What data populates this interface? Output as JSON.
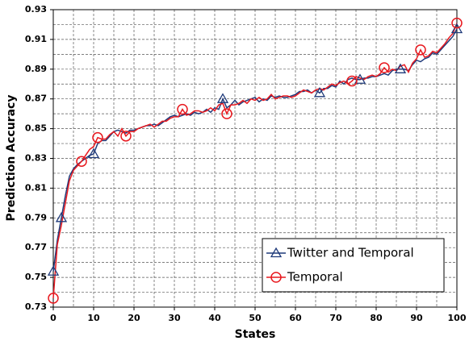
{
  "chart_data": {
    "type": "line",
    "x_label": "States",
    "y_label": "Prediction Accuracy",
    "x": [
      0,
      1,
      2,
      3,
      4,
      5,
      6,
      7,
      8,
      9,
      10,
      11,
      12,
      13,
      14,
      15,
      16,
      17,
      18,
      19,
      20,
      21,
      22,
      23,
      24,
      25,
      26,
      27,
      28,
      29,
      30,
      31,
      32,
      33,
      34,
      35,
      36,
      37,
      38,
      39,
      40,
      41,
      42,
      43,
      44,
      45,
      46,
      47,
      48,
      49,
      50,
      51,
      52,
      53,
      54,
      55,
      56,
      57,
      58,
      59,
      60,
      61,
      62,
      63,
      64,
      65,
      66,
      67,
      68,
      69,
      70,
      71,
      72,
      73,
      74,
      75,
      76,
      77,
      78,
      79,
      80,
      81,
      82,
      83,
      84,
      85,
      86,
      87,
      88,
      89,
      90,
      91,
      92,
      93,
      94,
      95,
      96,
      97,
      98,
      99,
      100
    ],
    "series": [
      {
        "name": "Twitter and Temporal",
        "color": "#1f3a7a",
        "marker": "triangle",
        "markers": [
          0,
          2,
          10,
          42,
          66,
          76,
          86,
          100
        ],
        "values": [
          0.754,
          0.775,
          0.79,
          0.805,
          0.818,
          0.823,
          0.826,
          0.828,
          0.83,
          0.832,
          0.833,
          0.84,
          0.842,
          0.842,
          0.845,
          0.848,
          0.849,
          0.848,
          0.847,
          0.849,
          0.849,
          0.85,
          0.851,
          0.852,
          0.852,
          0.853,
          0.852,
          0.854,
          0.856,
          0.858,
          0.859,
          0.858,
          0.859,
          0.86,
          0.859,
          0.861,
          0.86,
          0.861,
          0.863,
          0.861,
          0.864,
          0.863,
          0.87,
          0.864,
          0.866,
          0.869,
          0.866,
          0.868,
          0.869,
          0.87,
          0.871,
          0.868,
          0.87,
          0.869,
          0.872,
          0.871,
          0.872,
          0.871,
          0.871,
          0.872,
          0.873,
          0.875,
          0.875,
          0.876,
          0.874,
          0.876,
          0.874,
          0.877,
          0.877,
          0.879,
          0.878,
          0.882,
          0.88,
          0.883,
          0.884,
          0.883,
          0.883,
          0.884,
          0.884,
          0.885,
          0.885,
          0.886,
          0.887,
          0.886,
          0.889,
          0.89,
          0.89,
          0.89,
          0.889,
          0.893,
          0.896,
          0.895,
          0.897,
          0.898,
          0.901,
          0.9,
          0.903,
          0.906,
          0.909,
          0.912,
          0.917
        ]
      },
      {
        "name": "Temporal",
        "color": "#e8191f",
        "marker": "circle",
        "markers": [
          0,
          7,
          11,
          18,
          32,
          43,
          74,
          82,
          91,
          100
        ],
        "values": [
          0.736,
          0.772,
          0.785,
          0.8,
          0.815,
          0.822,
          0.825,
          0.828,
          0.832,
          0.836,
          0.838,
          0.844,
          0.843,
          0.843,
          0.846,
          0.848,
          0.845,
          0.85,
          0.845,
          0.848,
          0.848,
          0.85,
          0.851,
          0.852,
          0.853,
          0.851,
          0.853,
          0.855,
          0.855,
          0.857,
          0.858,
          0.858,
          0.863,
          0.859,
          0.86,
          0.862,
          0.862,
          0.861,
          0.862,
          0.864,
          0.862,
          0.866,
          0.867,
          0.86,
          0.866,
          0.866,
          0.867,
          0.869,
          0.867,
          0.87,
          0.869,
          0.871,
          0.869,
          0.87,
          0.873,
          0.87,
          0.871,
          0.872,
          0.872,
          0.871,
          0.872,
          0.874,
          0.876,
          0.875,
          0.874,
          0.876,
          0.877,
          0.876,
          0.878,
          0.88,
          0.879,
          0.881,
          0.882,
          0.88,
          0.882,
          0.885,
          0.884,
          0.883,
          0.885,
          0.886,
          0.885,
          0.887,
          0.891,
          0.888,
          0.89,
          0.889,
          0.892,
          0.893,
          0.888,
          0.894,
          0.897,
          0.903,
          0.898,
          0.899,
          0.902,
          0.901,
          0.904,
          0.907,
          0.911,
          0.914,
          0.921
        ]
      }
    ],
    "xlim": [
      0,
      100
    ],
    "ylim": [
      0.73,
      0.93
    ],
    "xticks": [
      0,
      10,
      20,
      30,
      40,
      50,
      60,
      70,
      80,
      90,
      100
    ],
    "yticks": [
      0.73,
      0.75,
      0.77,
      0.79,
      0.81,
      0.83,
      0.85,
      0.87,
      0.89,
      0.91,
      0.93
    ],
    "x_grid": [
      5,
      10,
      15,
      20,
      25,
      30,
      35,
      40,
      45,
      50,
      55,
      60,
      65,
      70,
      75,
      80,
      85,
      90,
      95
    ],
    "y_grid": [
      0.74,
      0.75,
      0.76,
      0.77,
      0.78,
      0.79,
      0.8,
      0.81,
      0.82,
      0.83,
      0.84,
      0.85,
      0.86,
      0.87,
      0.88,
      0.89,
      0.9,
      0.91,
      0.92
    ],
    "legend": "lower right"
  }
}
